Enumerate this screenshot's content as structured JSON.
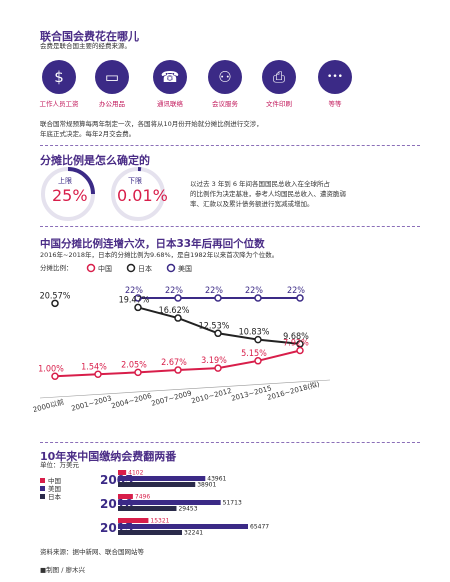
{
  "section1": {
    "title": "联合国会费花在哪儿",
    "subtitle": "会费是联合国主要的经费来源。",
    "icons": [
      {
        "name": "dollar-person-icon",
        "label": "工作人员工资"
      },
      {
        "name": "computer-icon",
        "label": "办公用品"
      },
      {
        "name": "phone-icon",
        "label": "通讯联络"
      },
      {
        "name": "meeting-icon",
        "label": "会议服务"
      },
      {
        "name": "printer-icon",
        "label": "文件印刷"
      },
      {
        "name": "more-icon",
        "label": "等等"
      }
    ],
    "note1": "联合国常规预算每两年制定一次，各国将从10月份开始就分摊比例进行交涉，",
    "note2": "年底正式决定。每年2月交会费。"
  },
  "section2": {
    "title": "分摊比例是怎么确定的",
    "upper_label": "上限",
    "upper_value": "25%",
    "lower_label": "下限",
    "lower_value": "0.01%",
    "desc1": "以过去 3 年到 6 年间各国国民总收入在全球所占",
    "desc2": "的比例作为决定基准，参考人均国民总收入、遭资脆弱",
    "desc3": "率、汇款以及累计债务额进行宽减或增加。"
  },
  "section3": {
    "title": "中国分摊比例连增六次，日本33年后再回个位数",
    "subtitle": "2016年~2018年，日本的分摊比例为9.68%，是自1982年以来首次降为个位数。",
    "legend_label": "分摊比例：",
    "legend": [
      {
        "name": "中国",
        "color": "#d81e4a"
      },
      {
        "name": "日本",
        "color": "#222222"
      },
      {
        "name": "美国",
        "color": "#3b2a86"
      }
    ]
  },
  "chart_data": [
    {
      "type": "line",
      "categories": [
        "2000以前",
        "2001~2003",
        "2004~2006",
        "2007~2009",
        "2010~2012",
        "2013~2015",
        "2016~2018(拟)"
      ],
      "series": [
        {
          "name": "美国",
          "color": "#3b2a86",
          "values": [
            null,
            null,
            22,
            22,
            22,
            22,
            22
          ],
          "labels": [
            "",
            "",
            "22%",
            "22%",
            "22%",
            "22%",
            "22%"
          ]
        },
        {
          "name": "日本",
          "color": "#222222",
          "values": [
            20.57,
            null,
            19.47,
            16.62,
            12.53,
            10.83,
            9.68
          ],
          "labels": [
            "20.57%",
            "",
            "19.47%",
            "16.62%",
            "12.53%",
            "10.83%",
            "9.68%"
          ]
        },
        {
          "name": "中国",
          "color": "#d81e4a",
          "values": [
            1.0,
            1.54,
            2.05,
            2.67,
            3.19,
            5.15,
            7.92
          ],
          "labels": [
            "1.00%",
            "1.54%",
            "2.05%",
            "2.67%",
            "3.19%",
            "5.15%",
            "7.92%"
          ]
        }
      ]
    },
    {
      "type": "bar",
      "title": "10年来中国缴纳会费翻两番",
      "ylabel": "单位：万美元",
      "categories": [
        "2005",
        "2010",
        "2015"
      ],
      "series": [
        {
          "name": "中国",
          "color": "#d81e4a",
          "values": [
            4102,
            7496,
            15321
          ]
        },
        {
          "name": "美国",
          "color": "#3b2a86",
          "values": [
            43961,
            51713,
            65477
          ]
        },
        {
          "name": "日本",
          "color": "#2a2a4a",
          "values": [
            38901,
            29453,
            32241
          ]
        }
      ]
    }
  ],
  "footer": {
    "source": "资料来源：据中新网、联合国网站等",
    "credit": "■制图 / 廖木兴"
  }
}
